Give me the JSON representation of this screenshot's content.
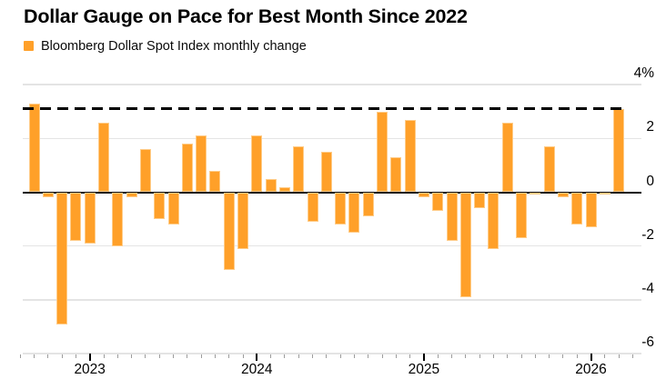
{
  "header": {
    "title": "Dollar Gauge on Pace for Best Month Since 2022",
    "legend": {
      "label": "Bloomberg Dollar Spot Index monthly change",
      "swatch_color": "#FFA029"
    }
  },
  "chart_data": {
    "type": "bar",
    "title": "Dollar Gauge on Pace for Best Month Since 2022",
    "series_name": "Bloomberg Dollar Spot Index monthly change",
    "unit": "percent",
    "bar_color": "#FFA029",
    "grid": true,
    "legend_position": "top-left",
    "x": [
      "Sep 2022",
      "Oct 2022",
      "Nov 2022",
      "Dec 2022",
      "Jan 2023",
      "Feb 2023",
      "Mar 2023",
      "Apr 2023",
      "May 2023",
      "Jun 2023",
      "Jul 2023",
      "Aug 2023",
      "Sep 2023",
      "Oct 2023",
      "Nov 2023",
      "Dec 2023",
      "Jan 2024",
      "Feb 2024",
      "Mar 2024",
      "Apr 2024",
      "May 2024",
      "Jun 2024",
      "Jul 2024",
      "Aug 2024",
      "Sep 2024",
      "Oct 2024",
      "Nov 2024",
      "Dec 2024",
      "Jan 2025",
      "Feb 2025",
      "Mar 2025",
      "Apr 2025",
      "May 2025",
      "Jun 2025",
      "Jul 2025",
      "Aug 2025",
      "Sep 2025",
      "Oct 2025",
      "Nov 2025",
      "Dec 2025",
      "Jan 2026",
      "Feb 2026",
      "Mar 2026"
    ],
    "values": [
      3.3,
      -0.2,
      -4.9,
      -1.8,
      -1.9,
      2.6,
      -2.0,
      -0.2,
      1.6,
      -1.0,
      -1.2,
      1.8,
      2.1,
      0.8,
      -2.9,
      -2.1,
      2.1,
      0.5,
      0.2,
      1.7,
      -1.1,
      1.5,
      -1.2,
      -1.5,
      -0.9,
      3.0,
      1.3,
      2.7,
      -0.2,
      -0.7,
      -1.8,
      -3.9,
      -0.6,
      -2.1,
      2.6,
      -1.7,
      -0.1,
      1.7,
      -0.2,
      -1.2,
      -1.3,
      -0.1,
      3.1
    ],
    "reference_line": {
      "value": 3.1,
      "style": "dashed",
      "color": "#000000"
    },
    "y_axis": {
      "side": "right",
      "min": -6,
      "max": 4,
      "ticks": [
        4,
        2,
        0,
        -2,
        -4,
        -6
      ],
      "tick_labels": [
        "4%",
        "2",
        "0",
        "-2",
        "-4",
        "-6"
      ]
    },
    "x_axis": {
      "year_labels": [
        "2023",
        "2024",
        "2025",
        "2026"
      ],
      "minor_tick": "monthly"
    }
  }
}
